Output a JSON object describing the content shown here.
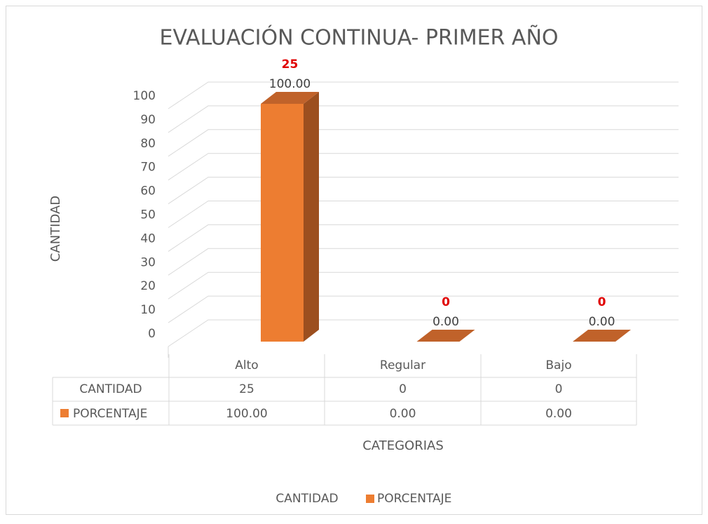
{
  "chart_data": {
    "type": "bar",
    "title": "EVALUACIÓN CONTINUA- PRIMER AÑO",
    "ylabel": "CANTIDAD",
    "xlabel": "CATEGORIAS",
    "categories": [
      "Alto",
      "Regular",
      "Bajo"
    ],
    "series": [
      {
        "name": "CANTIDAD",
        "label_color": "#e00000",
        "values": [
          25,
          0,
          0
        ]
      },
      {
        "name": "PORCENTAJE",
        "color": "#ed7d31",
        "values": [
          100,
          0,
          0
        ],
        "value_labels": [
          "100.00",
          "0.00",
          "0.00"
        ]
      }
    ],
    "ylim": [
      0,
      100
    ],
    "yticks": [
      0,
      10,
      20,
      30,
      40,
      50,
      60,
      70,
      80,
      90,
      100
    ],
    "grid": true,
    "legend": "bottom"
  }
}
